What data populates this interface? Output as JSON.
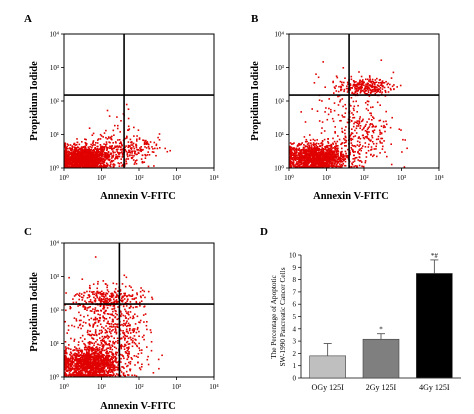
{
  "panels": {
    "a": {
      "letter": "A",
      "xlabel": "Annexin V-FITC",
      "ylabel": "Propidium Iodide"
    },
    "b": {
      "letter": "B",
      "xlabel": "Annexin V-FITC",
      "ylabel": "Propidium Iodide"
    },
    "c": {
      "letter": "C",
      "xlabel": "Annexin V-FITC",
      "ylabel": "Propidium Iodide"
    },
    "d": {
      "letter": "D"
    }
  },
  "log_ticks": {
    "labels": [
      "10⁰",
      "10¹",
      "10²",
      "10³",
      "10⁴"
    ],
    "values": [
      1,
      10,
      100,
      1000,
      10000
    ]
  },
  "colors": {
    "dots": "#e00000",
    "axis": "#000000",
    "gate": "#000000"
  },
  "chart_data": [
    {
      "type": "scatter",
      "panel": "A",
      "xlabel": "Annexin V-FITC",
      "ylabel": "Propidium Iodide",
      "xscale": "log",
      "yscale": "log",
      "xlim": [
        1,
        10000
      ],
      "ylim": [
        1,
        10000
      ],
      "gates": {
        "x": 40,
        "y": 150
      },
      "quadrant_percent_estimate": {
        "LL": 95,
        "LR": 4,
        "UL": 0,
        "UR": 1
      },
      "populations": [
        {
          "x_center": 3,
          "y_center": 1.8,
          "x_spread": 0.35,
          "y_spread": 0.18,
          "count": 1400
        },
        {
          "x_center": 25,
          "y_center": 3,
          "x_spread": 0.45,
          "y_spread": 0.25,
          "count": 260
        },
        {
          "x_center": 120,
          "y_center": 4,
          "x_spread": 0.25,
          "y_spread": 0.2,
          "count": 60
        },
        {
          "x_center": 30,
          "y_center": 25,
          "x_spread": 0.2,
          "y_spread": 0.2,
          "count": 15
        }
      ]
    },
    {
      "type": "scatter",
      "panel": "B",
      "xlabel": "Annexin V-FITC",
      "ylabel": "Propidium Iodide",
      "xscale": "log",
      "yscale": "log",
      "xlim": [
        1,
        10000
      ],
      "ylim": [
        1,
        10000
      ],
      "gates": {
        "x": 40,
        "y": 150
      },
      "quadrant_percent_estimate": {
        "LL": 72,
        "LR": 14,
        "UL": 4,
        "UR": 10
      },
      "populations": [
        {
          "x_center": 5,
          "y_center": 2,
          "x_spread": 0.4,
          "y_spread": 0.2,
          "count": 1300
        },
        {
          "x_center": 80,
          "y_center": 8,
          "x_spread": 0.45,
          "y_spread": 0.45,
          "count": 260
        },
        {
          "x_center": 100,
          "y_center": 250,
          "x_spread": 0.35,
          "y_spread": 0.12,
          "count": 260
        },
        {
          "x_center": 30,
          "y_center": 100,
          "x_spread": 0.5,
          "y_spread": 0.5,
          "count": 80
        }
      ]
    },
    {
      "type": "scatter",
      "panel": "C",
      "xlabel": "Annexin V-FITC",
      "ylabel": "Propidium Iodide",
      "xscale": "log",
      "yscale": "log",
      "xlim": [
        1,
        10000
      ],
      "ylim": [
        1,
        10000
      ],
      "gates": {
        "x": 30,
        "y": 150
      },
      "quadrant_percent_estimate": {
        "LL": 55,
        "LR": 15,
        "UL": 12,
        "UR": 18
      },
      "populations": [
        {
          "x_center": 5,
          "y_center": 2.2,
          "x_spread": 0.4,
          "y_spread": 0.25,
          "count": 1300
        },
        {
          "x_center": 12,
          "y_center": 30,
          "x_spread": 0.45,
          "y_spread": 0.55,
          "count": 380
        },
        {
          "x_center": 15,
          "y_center": 200,
          "x_spread": 0.45,
          "y_spread": 0.2,
          "count": 260
        },
        {
          "x_center": 60,
          "y_center": 10,
          "x_spread": 0.3,
          "y_spread": 0.5,
          "count": 120
        }
      ]
    },
    {
      "type": "bar",
      "panel": "D",
      "categories": [
        "OGy 125I",
        "2Gy 125I",
        "4Gy 125I"
      ],
      "values": [
        1.8,
        3.15,
        8.5
      ],
      "errors": [
        1.0,
        0.45,
        1.1
      ],
      "annotations": [
        "",
        "*",
        "*#"
      ],
      "bar_colors": [
        "#bfbfbf",
        "#7f7f7f",
        "#000000"
      ],
      "ylabel_lines": [
        "The Percentage of Apoptotic",
        "SW-1990 Pancreatic Cancer Cells"
      ],
      "ylim": [
        0,
        10
      ],
      "yticks": [
        0,
        1,
        2,
        3,
        4,
        5,
        6,
        7,
        8,
        9,
        10
      ]
    }
  ]
}
